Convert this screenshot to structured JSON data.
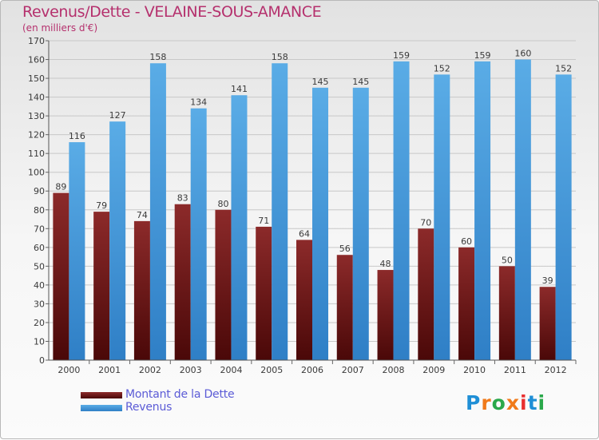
{
  "colors": {
    "dette_top": "#8c2a2a",
    "dette_bottom": "#4a0808",
    "revenus_top": "#5aace6",
    "revenus_bottom": "#2f7fc6",
    "title": "#b5306d",
    "legend_text": "#5b5bd6"
  },
  "logo": {
    "text": "Proxiti",
    "letters": [
      {
        "ch": "P",
        "color": "#1f8fd6"
      },
      {
        "ch": "r",
        "color": "#f07a1a"
      },
      {
        "ch": "o",
        "color": "#2aa84a"
      },
      {
        "ch": "x",
        "color": "#f07a1a"
      },
      {
        "ch": "i",
        "color": "#e83030"
      },
      {
        "ch": "t",
        "color": "#1f8fd6"
      },
      {
        "ch": "i",
        "color": "#2aa84a"
      }
    ]
  },
  "chart_data": {
    "type": "bar",
    "title": "Revenus/Dette - VELAINE-SOUS-AMANCE",
    "subtitle": "(en milliers d'€)",
    "xlabel": "",
    "ylabel": "",
    "ylim": [
      0,
      170
    ],
    "ytick_step": 10,
    "grid": true,
    "legend_position": "bottom-left",
    "categories": [
      "2000",
      "2001",
      "2002",
      "2003",
      "2004",
      "2005",
      "2006",
      "2007",
      "2008",
      "2009",
      "2010",
      "2011",
      "2012"
    ],
    "series": [
      {
        "name": "Montant de la Dette",
        "values": [
          89,
          79,
          74,
          83,
          80,
          71,
          64,
          56,
          48,
          70,
          60,
          50,
          39
        ]
      },
      {
        "name": "Revenus",
        "values": [
          116,
          127,
          158,
          134,
          141,
          158,
          145,
          145,
          159,
          152,
          159,
          160,
          152
        ]
      }
    ]
  }
}
